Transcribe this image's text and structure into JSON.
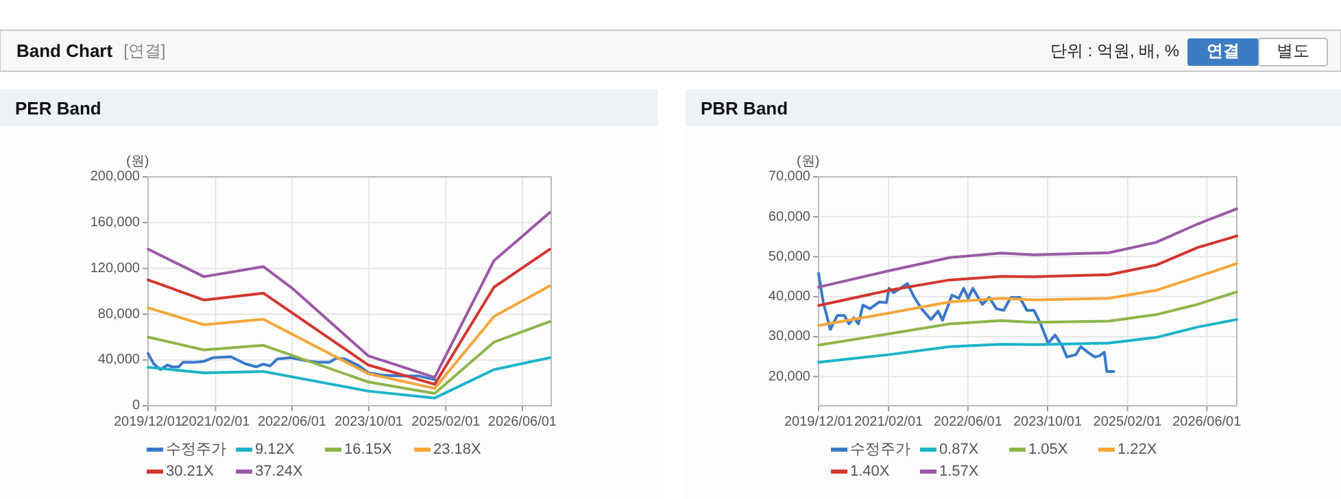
{
  "chart_data": [
    {
      "type": "other",
      "title": "Band Chart",
      "annotations": [
        "[연결]",
        "단위 : 억원, 배, %",
        "연결",
        "별도"
      ]
    },
    {
      "type": "line",
      "title": "PER Band",
      "ylabel": "(원)",
      "xlim": [
        "2019-12-01",
        "2026-12-01"
      ],
      "xticks": [
        {
          "value": "2019-12-01",
          "label": "2019/12/01"
        },
        {
          "value": "2021-02-01",
          "label": "2021/02/01"
        },
        {
          "value": "2022-06-01",
          "label": "2022/06/01"
        },
        {
          "value": "2023-10-01",
          "label": "2023/10/01"
        },
        {
          "value": "2025-02-01",
          "label": "2025/02/01"
        },
        {
          "value": "2026-06-01",
          "label": "2026/06/01"
        }
      ],
      "ylim": [
        0,
        200000
      ],
      "yticks": [
        0,
        {
          "value": 40000,
          "label": "40,000"
        },
        {
          "value": 80000,
          "label": "80,000"
        },
        {
          "value": 120000,
          "label": "120,000"
        },
        {
          "value": 160000,
          "label": "160,000"
        },
        {
          "value": 200000,
          "label": "200,000"
        }
      ],
      "grid": true,
      "legend": "bottom",
      "series": [
        {
          "name": "수정주가",
          "color": "#3a78c9",
          "x": [
            "2019-12-01",
            "2020-01-05",
            "2020-02-17",
            "2020-04-01",
            "2020-04-30",
            "2020-06-12",
            "2020-07-10",
            "2020-09-22",
            "2020-11-19",
            "2021-01-16",
            "2021-05-10",
            "2021-08-06",
            "2021-10-18",
            "2021-12-01",
            "2022-01-13",
            "2022-02-27",
            "2022-05-22",
            "2022-08-19",
            "2022-11-13",
            "2023-01-25",
            "2023-03-08",
            "2023-05-04",
            "2023-08-01",
            "2023-09-28",
            "2023-12-25",
            "2024-04-18",
            "2024-08-13",
            "2024-11-22"
          ],
          "values": [
            45600,
            36800,
            31600,
            35600,
            34000,
            34000,
            38000,
            38000,
            38800,
            42000,
            42800,
            36800,
            34000,
            36400,
            34800,
            40800,
            42000,
            39600,
            38000,
            38000,
            41600,
            40800,
            34800,
            28800,
            26800,
            26000,
            26000,
            22800
          ]
        },
        {
          "name": "9.12X",
          "color": "#1cb3c8",
          "x": [
            "2019-12-01",
            "2020-11-19",
            "2021-12-01",
            "2023-09-28",
            "2024-11-22",
            "2025-12-03",
            "2026-11-22"
          ],
          "values": [
            33600,
            28800,
            30000,
            12800,
            6800,
            31600,
            42000
          ]
        },
        {
          "name": "16.15X",
          "color": "#8fb54a",
          "x": [
            "2019-12-01",
            "2020-11-19",
            "2021-12-01",
            "2023-09-28",
            "2024-11-22",
            "2025-12-03",
            "2026-11-22"
          ],
          "values": [
            60000,
            48800,
            52800,
            20800,
            10800,
            55600,
            73600
          ]
        },
        {
          "name": "23.18X",
          "color": "#f3a73b",
          "x": [
            "2019-12-01",
            "2020-11-19",
            "2021-12-01",
            "2023-09-28",
            "2024-11-22",
            "2025-12-03",
            "2026-11-22"
          ],
          "values": [
            85600,
            70800,
            75600,
            28000,
            15200,
            78000,
            104800
          ]
        },
        {
          "name": "30.21X",
          "color": "#d3362f",
          "x": [
            "2019-12-01",
            "2020-11-19",
            "2021-12-01",
            "2023-09-28",
            "2024-11-22",
            "2025-12-03",
            "2026-11-22"
          ],
          "values": [
            110000,
            92400,
            98400,
            35600,
            18800,
            103600,
            136800
          ]
        },
        {
          "name": "37.24X",
          "color": "#9b59a6",
          "x": [
            "2019-12-01",
            "2020-11-19",
            "2021-12-01",
            "2022-06-01",
            "2023-09-28",
            "2024-11-22",
            "2025-12-03",
            "2026-11-22"
          ],
          "values": [
            136800,
            112800,
            121600,
            102800,
            43600,
            24800,
            126800,
            168800
          ]
        }
      ]
    },
    {
      "type": "line",
      "title": "PBR Band",
      "ylabel": "(원)",
      "xlim": [
        "2019-12-01",
        "2026-12-01"
      ],
      "xticks": [
        {
          "value": "2019-12-01",
          "label": "2019/12/01"
        },
        {
          "value": "2021-02-01",
          "label": "2021/02/01"
        },
        {
          "value": "2022-06-01",
          "label": "2022/06/01"
        },
        {
          "value": "2023-10-01",
          "label": "2023/10/01"
        },
        {
          "value": "2025-02-01",
          "label": "2025/02/01"
        },
        {
          "value": "2026-06-01",
          "label": "2026/06/01"
        }
      ],
      "ylim": [
        12700,
        70000
      ],
      "yticks": [
        {
          "value": 20000,
          "label": "20,000"
        },
        {
          "value": 30000,
          "label": "30,000"
        },
        {
          "value": 40000,
          "label": "40,000"
        },
        {
          "value": 50000,
          "label": "50,000"
        },
        {
          "value": 60000,
          "label": "60,000"
        },
        {
          "value": 70000,
          "label": "70,000"
        }
      ],
      "grid": true,
      "legend": "bottom",
      "series": [
        {
          "name": "수정주가",
          "color": "#3a78c9",
          "x": [
            "2019-12-01",
            "2019-12-29",
            "2020-02-11",
            "2020-03-24",
            "2020-05-06",
            "2020-06-04",
            "2020-07-03",
            "2020-08-01",
            "2020-08-28",
            "2020-10-10",
            "2020-12-07",
            "2021-01-19",
            "2021-02-04",
            "2021-03-03",
            "2021-04-15",
            "2021-05-27",
            "2021-07-09",
            "2021-08-21",
            "2021-10-18",
            "2021-12-01",
            "2021-12-28",
            "2022-02-24",
            "2022-04-07",
            "2022-05-06",
            "2022-06-03",
            "2022-07-01",
            "2022-08-28",
            "2022-10-10",
            "2022-11-22",
            "2023-01-06",
            "2023-02-18",
            "2023-04-15",
            "2023-05-27",
            "2023-07-10",
            "2023-08-22",
            "2023-10-04",
            "2023-11-16",
            "2023-12-28",
            "2024-01-27",
            "2024-03-22",
            "2024-04-21",
            "2024-06-03",
            "2024-07-16",
            "2024-08-13",
            "2024-09-12",
            "2024-09-27",
            "2024-11-09"
          ],
          "values": [
            45800,
            38700,
            31800,
            35300,
            35300,
            33200,
            34700,
            33200,
            37900,
            37000,
            38700,
            38500,
            42100,
            41000,
            42100,
            43300,
            39800,
            37000,
            34300,
            36400,
            34100,
            40400,
            39600,
            42100,
            39600,
            42100,
            38100,
            39800,
            37000,
            36600,
            39800,
            39800,
            36600,
            36600,
            33000,
            28400,
            30400,
            27800,
            24900,
            25500,
            27500,
            26100,
            24900,
            25200,
            26100,
            21300,
            21300
          ]
        },
        {
          "name": "0.87X",
          "color": "#1cb3c8",
          "x": [
            "2019-12-01",
            "2021-02-04",
            "2022-02-10",
            "2022-12-20",
            "2023-07-10",
            "2024-10-10",
            "2025-07-25",
            "2026-04-06",
            "2026-12-01"
          ],
          "values": [
            23600,
            25500,
            27500,
            28100,
            28000,
            28400,
            29800,
            32400,
            34300
          ]
        },
        {
          "name": "1.05X",
          "color": "#8fb54a",
          "x": [
            "2019-12-01",
            "2021-02-04",
            "2022-02-10",
            "2022-12-20",
            "2023-07-10",
            "2024-10-10",
            "2025-07-25",
            "2026-04-06",
            "2026-12-01"
          ],
          "values": [
            27900,
            30700,
            33200,
            34000,
            33600,
            33900,
            35500,
            38100,
            41200
          ]
        },
        {
          "name": "1.22X",
          "color": "#f3a73b",
          "x": [
            "2019-12-01",
            "2021-02-04",
            "2022-02-10",
            "2022-12-20",
            "2023-07-10",
            "2024-10-10",
            "2025-07-25",
            "2026-04-06",
            "2026-12-01"
          ],
          "values": [
            32800,
            35900,
            38700,
            39600,
            39200,
            39600,
            41600,
            45000,
            48300
          ]
        },
        {
          "name": "1.40X",
          "color": "#d3362f",
          "x": [
            "2019-12-01",
            "2021-02-04",
            "2022-02-10",
            "2022-12-20",
            "2023-07-10",
            "2024-10-10",
            "2025-07-25",
            "2026-04-06",
            "2026-12-01"
          ],
          "values": [
            37800,
            41600,
            44200,
            45100,
            45000,
            45500,
            47900,
            52300,
            55200
          ]
        },
        {
          "name": "1.57X",
          "color": "#9b59a6",
          "x": [
            "2019-12-01",
            "2021-02-04",
            "2022-02-10",
            "2022-12-20",
            "2023-07-10",
            "2024-10-10",
            "2025-07-25",
            "2026-04-06",
            "2026-12-01"
          ],
          "values": [
            42400,
            46500,
            49800,
            50900,
            50500,
            51000,
            53600,
            58200,
            62000
          ]
        }
      ]
    }
  ]
}
